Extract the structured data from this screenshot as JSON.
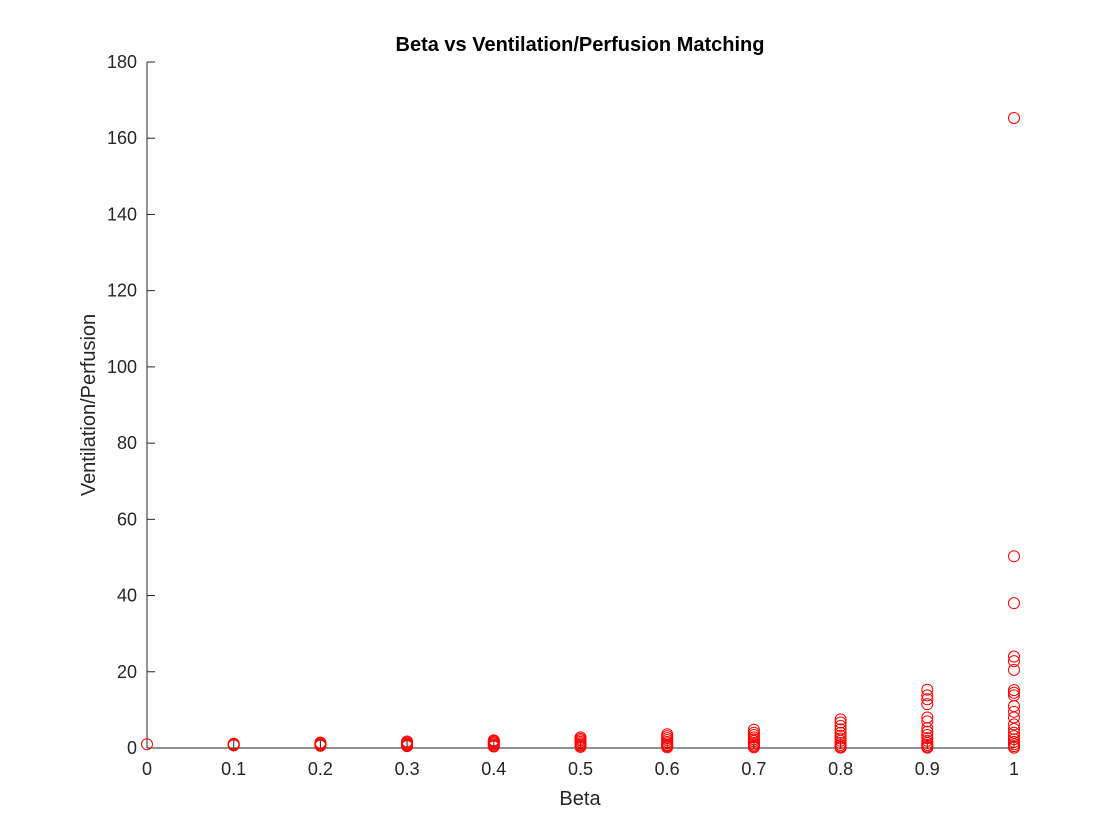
{
  "chart_data": {
    "type": "scatter",
    "title": "Beta vs Ventilation/Perfusion Matching",
    "xlabel": "Beta",
    "ylabel": "Ventilation/Perfusion",
    "xlim": [
      0,
      1
    ],
    "ylim": [
      0,
      180
    ],
    "xticks": [
      0,
      0.1,
      0.2,
      0.3,
      0.4,
      0.5,
      0.6,
      0.7,
      0.8,
      0.9,
      1
    ],
    "xtick_labels": [
      "0",
      "0.1",
      "0.2",
      "0.3",
      "0.4",
      "0.5",
      "0.6",
      "0.7",
      "0.8",
      "0.9",
      "1"
    ],
    "yticks": [
      0,
      20,
      40,
      60,
      80,
      100,
      120,
      140,
      160,
      180
    ],
    "ytick_labels": [
      "0",
      "20",
      "40",
      "60",
      "80",
      "100",
      "120",
      "140",
      "160",
      "180"
    ],
    "grid": false,
    "box": false,
    "marker": "circle-open",
    "marker_color": "#ff0000",
    "series": [
      {
        "points": [
          {
            "x": 0,
            "y": 1.0
          },
          {
            "x": 0.1,
            "y": 0.7
          },
          {
            "x": 0.1,
            "y": 0.9
          },
          {
            "x": 0.1,
            "y": 1.0
          },
          {
            "x": 0.1,
            "y": 1.1
          },
          {
            "x": 0.2,
            "y": 0.6
          },
          {
            "x": 0.2,
            "y": 0.8
          },
          {
            "x": 0.2,
            "y": 1.0
          },
          {
            "x": 0.2,
            "y": 1.2
          },
          {
            "x": 0.2,
            "y": 1.4
          },
          {
            "x": 0.3,
            "y": 0.5
          },
          {
            "x": 0.3,
            "y": 0.7
          },
          {
            "x": 0.3,
            "y": 0.9
          },
          {
            "x": 0.3,
            "y": 1.1
          },
          {
            "x": 0.3,
            "y": 1.4
          },
          {
            "x": 0.3,
            "y": 1.7
          },
          {
            "x": 0.4,
            "y": 0.4
          },
          {
            "x": 0.4,
            "y": 0.6
          },
          {
            "x": 0.4,
            "y": 0.9
          },
          {
            "x": 0.4,
            "y": 1.2
          },
          {
            "x": 0.4,
            "y": 1.5
          },
          {
            "x": 0.4,
            "y": 1.8
          },
          {
            "x": 0.4,
            "y": 2.0
          },
          {
            "x": 0.5,
            "y": 0.3
          },
          {
            "x": 0.5,
            "y": 0.6
          },
          {
            "x": 0.5,
            "y": 0.9
          },
          {
            "x": 0.5,
            "y": 1.2
          },
          {
            "x": 0.5,
            "y": 1.6
          },
          {
            "x": 0.5,
            "y": 2.0
          },
          {
            "x": 0.5,
            "y": 2.4
          },
          {
            "x": 0.5,
            "y": 2.8
          },
          {
            "x": 0.6,
            "y": 0.2
          },
          {
            "x": 0.6,
            "y": 0.5
          },
          {
            "x": 0.6,
            "y": 0.8
          },
          {
            "x": 0.6,
            "y": 1.2
          },
          {
            "x": 0.6,
            "y": 1.6
          },
          {
            "x": 0.6,
            "y": 2.1
          },
          {
            "x": 0.6,
            "y": 2.6
          },
          {
            "x": 0.6,
            "y": 3.1
          },
          {
            "x": 0.6,
            "y": 3.6
          },
          {
            "x": 0.7,
            "y": 0.2
          },
          {
            "x": 0.7,
            "y": 0.5
          },
          {
            "x": 0.7,
            "y": 0.9
          },
          {
            "x": 0.7,
            "y": 1.3
          },
          {
            "x": 0.7,
            "y": 1.8
          },
          {
            "x": 0.7,
            "y": 2.3
          },
          {
            "x": 0.7,
            "y": 2.8
          },
          {
            "x": 0.7,
            "y": 3.4
          },
          {
            "x": 0.7,
            "y": 4.0
          },
          {
            "x": 0.7,
            "y": 4.8
          },
          {
            "x": 0.8,
            "y": 0.1
          },
          {
            "x": 0.8,
            "y": 0.4
          },
          {
            "x": 0.8,
            "y": 0.8
          },
          {
            "x": 0.8,
            "y": 1.3
          },
          {
            "x": 0.8,
            "y": 1.9
          },
          {
            "x": 0.8,
            "y": 2.5
          },
          {
            "x": 0.8,
            "y": 3.2
          },
          {
            "x": 0.8,
            "y": 4.0
          },
          {
            "x": 0.8,
            "y": 4.9
          },
          {
            "x": 0.8,
            "y": 5.8
          },
          {
            "x": 0.8,
            "y": 6.7
          },
          {
            "x": 0.8,
            "y": 7.5
          },
          {
            "x": 0.9,
            "y": 0.1
          },
          {
            "x": 0.9,
            "y": 0.4
          },
          {
            "x": 0.9,
            "y": 0.8
          },
          {
            "x": 0.9,
            "y": 1.3
          },
          {
            "x": 0.9,
            "y": 1.9
          },
          {
            "x": 0.9,
            "y": 2.6
          },
          {
            "x": 0.9,
            "y": 3.4
          },
          {
            "x": 0.9,
            "y": 4.3
          },
          {
            "x": 0.9,
            "y": 5.2
          },
          {
            "x": 0.9,
            "y": 7.0
          },
          {
            "x": 0.9,
            "y": 8.0
          },
          {
            "x": 0.9,
            "y": 11.5
          },
          {
            "x": 0.9,
            "y": 12.8
          },
          {
            "x": 0.9,
            "y": 13.8
          },
          {
            "x": 0.9,
            "y": 15.3
          },
          {
            "x": 1,
            "y": 0.1
          },
          {
            "x": 1,
            "y": 0.5
          },
          {
            "x": 1,
            "y": 1.0
          },
          {
            "x": 1,
            "y": 1.6
          },
          {
            "x": 1,
            "y": 2.3
          },
          {
            "x": 1,
            "y": 3.1
          },
          {
            "x": 1,
            "y": 4.0
          },
          {
            "x": 1,
            "y": 5.0
          },
          {
            "x": 1,
            "y": 6.2
          },
          {
            "x": 1,
            "y": 8.0
          },
          {
            "x": 1,
            "y": 9.5
          },
          {
            "x": 1,
            "y": 11.0
          },
          {
            "x": 1,
            "y": 13.8
          },
          {
            "x": 1,
            "y": 14.5
          },
          {
            "x": 1,
            "y": 15.2
          },
          {
            "x": 1,
            "y": 20.5
          },
          {
            "x": 1,
            "y": 22.8
          },
          {
            "x": 1,
            "y": 24.0
          },
          {
            "x": 1,
            "y": 38.0
          },
          {
            "x": 1,
            "y": 50.3
          },
          {
            "x": 1,
            "y": 165.3
          }
        ]
      }
    ]
  }
}
